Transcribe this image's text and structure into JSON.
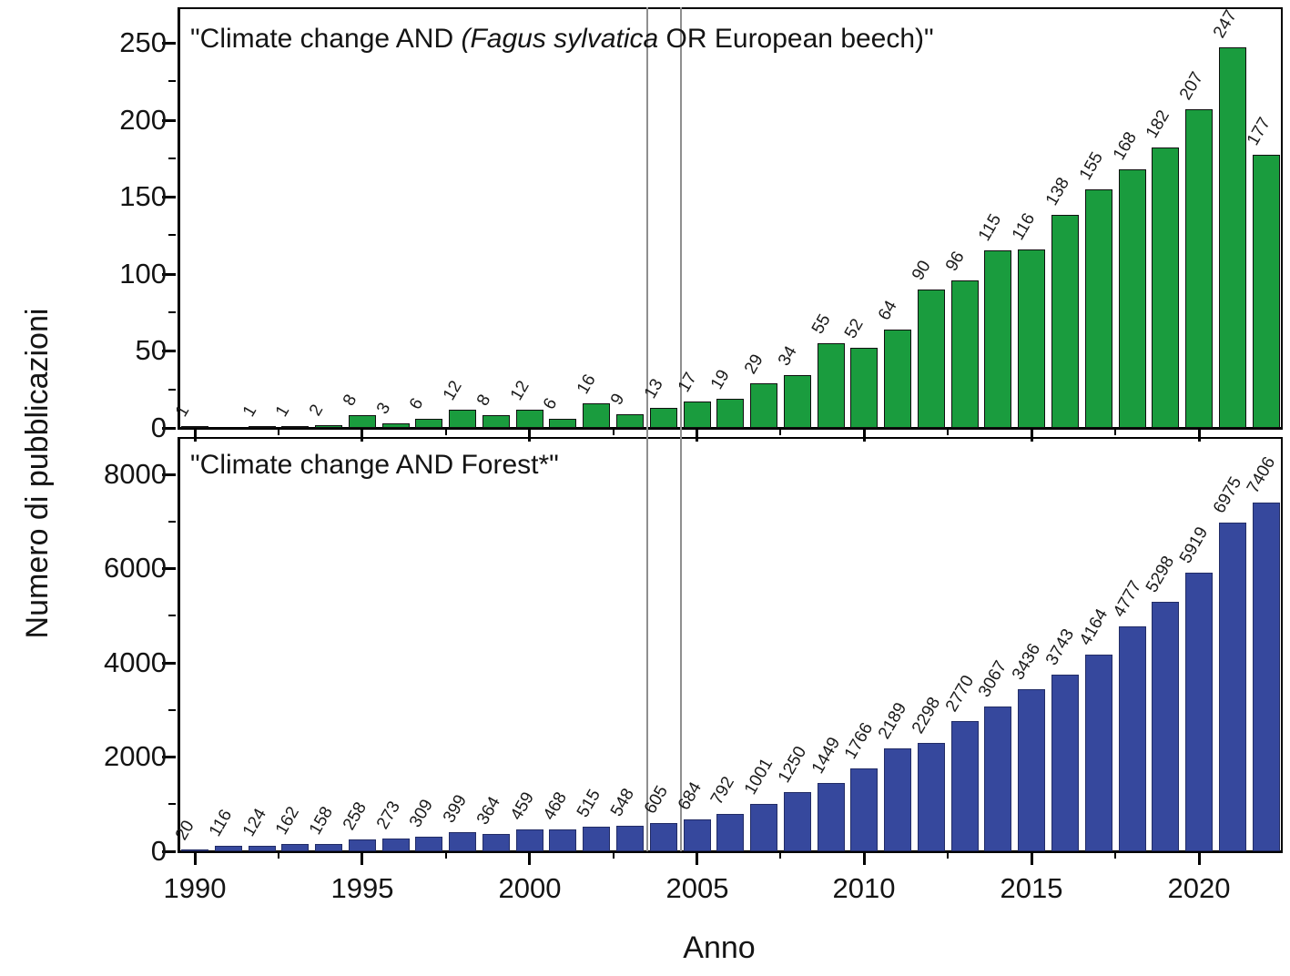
{
  "figure": {
    "ylabel": "Numero di pubblicazioni",
    "xlabel": "Anno"
  },
  "annotations": {
    "vertical_guides": "two gray vertical lines bracketing the year 2004 in both panels",
    "guide_year": 2004,
    "guide_color": "#8f8f8f"
  },
  "chart_data": [
    {
      "type": "bar",
      "panel": "top",
      "title": "\"Climate change AND (Fagus sylvatica OR European beech)\"",
      "title_prefix": "\"Climate change AND ",
      "title_italic": "(Fagus sylvatica",
      "title_suffix": " OR European beech)\"",
      "years": [
        1990,
        1991,
        1992,
        1993,
        1994,
        1995,
        1996,
        1997,
        1998,
        1999,
        2000,
        2001,
        2002,
        2003,
        2004,
        2005,
        2006,
        2007,
        2008,
        2009,
        2010,
        2011,
        2012,
        2013,
        2014,
        2015,
        2016,
        2017,
        2018,
        2019,
        2020,
        2021,
        2022
      ],
      "values": [
        1,
        0,
        1,
        1,
        2,
        8,
        3,
        6,
        12,
        8,
        12,
        6,
        16,
        9,
        13,
        17,
        19,
        29,
        34,
        55,
        52,
        64,
        90,
        96,
        115,
        116,
        138,
        155,
        168,
        182,
        207,
        247,
        177
      ],
      "value_labels_shown": true,
      "bar_color": "#1a9c3e",
      "bar_border": "#0f0f0f",
      "ylim": [
        0,
        273
      ],
      "yticks": [
        0,
        50,
        100,
        150,
        200,
        250
      ],
      "y_minor_step": 25,
      "xticks": [
        1990,
        1995,
        2000,
        2005,
        2010,
        2015,
        2020
      ],
      "x_minor_step": 2.5,
      "grid": false,
      "legend": "none"
    },
    {
      "type": "bar",
      "panel": "bottom",
      "title": "\"Climate change AND Forest*\"",
      "years": [
        1990,
        1991,
        1992,
        1993,
        1994,
        1995,
        1996,
        1997,
        1998,
        1999,
        2000,
        2001,
        2002,
        2003,
        2004,
        2005,
        2006,
        2007,
        2008,
        2009,
        2010,
        2011,
        2012,
        2013,
        2014,
        2015,
        2016,
        2017,
        2018,
        2019,
        2020,
        2021,
        2022
      ],
      "values": [
        20,
        116,
        124,
        162,
        158,
        258,
        273,
        309,
        399,
        364,
        459,
        468,
        515,
        548,
        605,
        684,
        792,
        1001,
        1250,
        1449,
        1766,
        2189,
        2298,
        2770,
        3067,
        3436,
        3743,
        4164,
        4777,
        5298,
        5919,
        6975,
        7406
      ],
      "value_labels_shown": true,
      "bar_color": "#36489d",
      "bar_border": "#222c66",
      "ylim": [
        0,
        8790
      ],
      "yticks": [
        0,
        2000,
        4000,
        6000,
        8000
      ],
      "y_minor_step": 1000,
      "xticks": [
        1990,
        1995,
        2000,
        2005,
        2010,
        2015,
        2020
      ],
      "x_minor_step": 2.5,
      "grid": false,
      "legend": "none"
    }
  ]
}
